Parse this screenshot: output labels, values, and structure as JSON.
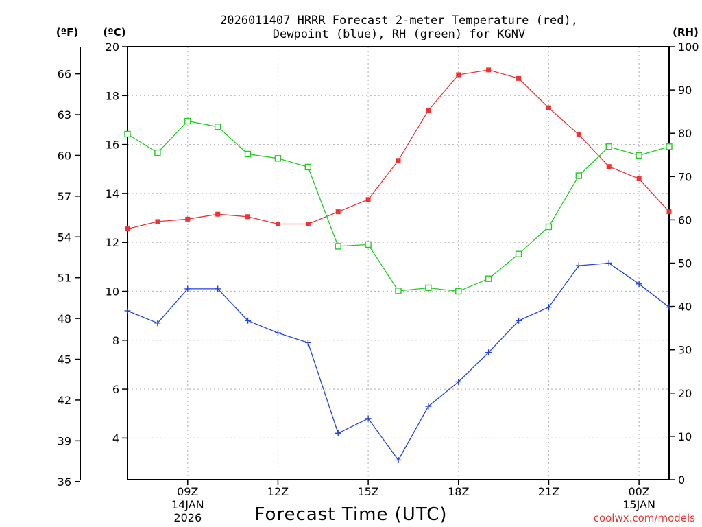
{
  "chart_data": {
    "type": "line",
    "title_line1": "2026011407 HRRR Forecast 2-meter Temperature (red),",
    "title_line2": "Dewpoint (blue), RH (green) for KGNV",
    "xlabel": "Forecast Time (UTC)",
    "credit": "coolwx.com/models",
    "units": {
      "fahrenheit": "(ºF)",
      "celsius": "(ºC)",
      "rh": "(RH)"
    },
    "x_hours": [
      7,
      8,
      9,
      10,
      11,
      12,
      13,
      14,
      15,
      16,
      17,
      18,
      19,
      20,
      21,
      22,
      23,
      24,
      25
    ],
    "xlim": [
      7,
      25
    ],
    "x_ticks": [
      {
        "hour": 9,
        "label": "09Z",
        "sub1": "14JAN",
        "sub2": "2026"
      },
      {
        "hour": 12,
        "label": "12Z",
        "sub1": "",
        "sub2": ""
      },
      {
        "hour": 15,
        "label": "15Z",
        "sub1": "",
        "sub2": ""
      },
      {
        "hour": 18,
        "label": "18Z",
        "sub1": "",
        "sub2": ""
      },
      {
        "hour": 21,
        "label": "21Z",
        "sub1": "",
        "sub2": ""
      },
      {
        "hour": 24,
        "label": "00Z",
        "sub1": "15JAN",
        "sub2": ""
      }
    ],
    "celsius_axis": {
      "ylim": [
        2.3,
        20
      ],
      "ticks": [
        "4",
        "6",
        "8",
        "10",
        "12",
        "14",
        "16",
        "18",
        "20"
      ]
    },
    "fahrenheit_axis": {
      "ticks": [
        "36",
        "39",
        "42",
        "45",
        "48",
        "51",
        "54",
        "57",
        "60",
        "63",
        "66"
      ]
    },
    "rh_axis": {
      "ylim": [
        0,
        100
      ],
      "ticks": [
        "0",
        "10",
        "20",
        "30",
        "40",
        "50",
        "60",
        "70",
        "80",
        "90",
        "100"
      ]
    },
    "series": [
      {
        "name": "Temperature",
        "color": "#ee3333",
        "axis": "celsius",
        "marker": "filled-square",
        "values": [
          12.55,
          12.85,
          12.95,
          13.15,
          13.05,
          12.75,
          12.75,
          13.25,
          13.75,
          15.35,
          17.4,
          18.85,
          19.05,
          18.7,
          17.5,
          16.4,
          15.1,
          14.6,
          13.25
        ]
      },
      {
        "name": "Dewpoint",
        "color": "#2244dd",
        "axis": "celsius",
        "marker": "plus",
        "values": [
          9.2,
          8.7,
          10.1,
          10.1,
          8.8,
          8.3,
          7.9,
          4.2,
          4.8,
          3.1,
          5.3,
          6.3,
          7.5,
          8.8,
          9.35,
          11.05,
          11.15,
          10.3,
          9.35
        ]
      },
      {
        "name": "RH",
        "color": "#22cc22",
        "axis": "rh",
        "marker": "open-square",
        "values": [
          79.8,
          75.5,
          82.8,
          81.5,
          75.2,
          74.2,
          72.2,
          53.9,
          54.3,
          43.6,
          44.3,
          43.5,
          46.4,
          52.1,
          58.4,
          70.2,
          76.9,
          74.9,
          76.9
        ]
      }
    ]
  }
}
